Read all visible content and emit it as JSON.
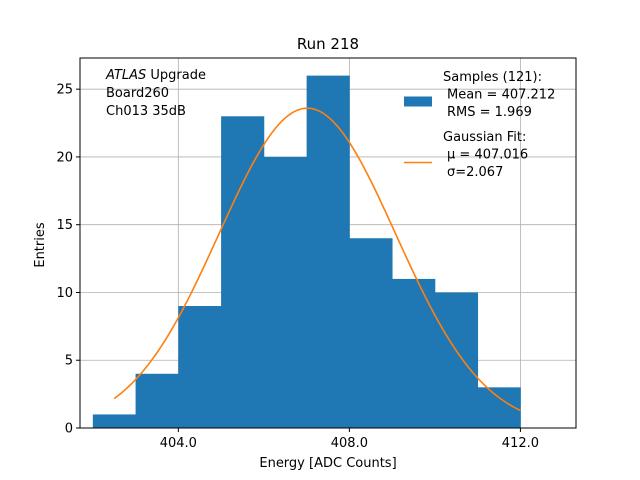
{
  "chart_data": {
    "type": "bar",
    "title": "Run 218",
    "xlabel": "Energy [ADC Counts]",
    "ylabel": "Entries",
    "xlim": [
      401.7,
      413.3
    ],
    "ylim": [
      0,
      27.3
    ],
    "grid": true,
    "x_ticks": [
      404.0,
      408.0,
      412.0
    ],
    "x_tick_labels": [
      "404.0",
      "408.0",
      "412.0"
    ],
    "y_ticks": [
      0,
      5,
      10,
      15,
      20,
      25
    ],
    "y_tick_labels": [
      "0",
      "5",
      "10",
      "15",
      "20",
      "25"
    ],
    "histogram": {
      "color": "#1f77b4",
      "bin_edges": [
        402,
        403,
        404,
        405,
        406,
        407,
        408,
        409,
        410,
        411,
        412,
        413
      ],
      "counts": [
        1,
        4,
        9,
        23,
        20,
        26,
        14,
        11,
        10,
        3,
        0
      ]
    },
    "gaussian_fit": {
      "color": "#ff7f0e",
      "mu": 407.016,
      "sigma": 2.067,
      "amplitude": 23.6,
      "x_range": [
        402.5,
        412.0
      ]
    },
    "annotation": {
      "lines": [
        {
          "italic": "ATLAS",
          "rest": " Upgrade"
        },
        {
          "italic": "",
          "rest": "Board260"
        },
        {
          "italic": "",
          "rest": "Ch013 35dB"
        }
      ]
    },
    "legend": {
      "placement": "top-right",
      "entries": [
        {
          "kind": "patch",
          "color": "#1f77b4",
          "lines": [
            "Samples (121):",
            "Mean = 407.212",
            "RMS = 1.969"
          ]
        },
        {
          "kind": "line",
          "color": "#ff7f0e",
          "lines": [
            "Gaussian Fit:",
            "μ = 407.016",
            "σ=2.067"
          ]
        }
      ]
    }
  }
}
